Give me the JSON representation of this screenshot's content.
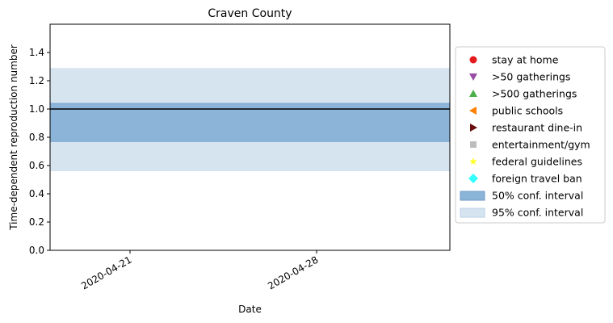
{
  "chart_data": {
    "type": "line",
    "title": "Craven County",
    "xlabel": "Date",
    "ylabel": "Time-dependent reproduction number",
    "x_range": [
      "2020-04-18",
      "2020-05-03"
    ],
    "x_ticks": [
      "2020-04-21",
      "2020-04-28"
    ],
    "ylim": [
      0,
      1.6
    ],
    "y_ticks": [
      "0.0",
      "0.2",
      "0.4",
      "0.6",
      "0.8",
      "1.0",
      "1.2",
      "1.4"
    ],
    "reference_line": 1.0,
    "interval_50": [
      0.77,
      1.04
    ],
    "interval_95": [
      0.56,
      1.29
    ],
    "grid": false,
    "legend_position": "right",
    "legend": [
      {
        "label": "stay at home",
        "marker": "circle",
        "color": "#e41a1c"
      },
      {
        "label": ">50 gatherings",
        "marker": "triangle-down",
        "color": "#984ea3"
      },
      {
        "label": ">500 gatherings",
        "marker": "triangle-up",
        "color": "#4daf4a"
      },
      {
        "label": "public schools",
        "marker": "triangle-left",
        "color": "#ff7f00"
      },
      {
        "label": "restaurant dine-in",
        "marker": "triangle-right",
        "color": "#6a0d0d"
      },
      {
        "label": "entertainment/gym",
        "marker": "square",
        "color": "#bdbdbd"
      },
      {
        "label": "federal guidelines",
        "marker": "star",
        "color": "#ffff33"
      },
      {
        "label": "foreign travel ban",
        "marker": "diamond",
        "color": "#33ffff"
      },
      {
        "label": "50% conf. interval",
        "marker": "patch",
        "color": "#8cb4d9"
      },
      {
        "label": "95% conf. interval",
        "marker": "patch",
        "color": "#d6e4f0"
      }
    ]
  }
}
